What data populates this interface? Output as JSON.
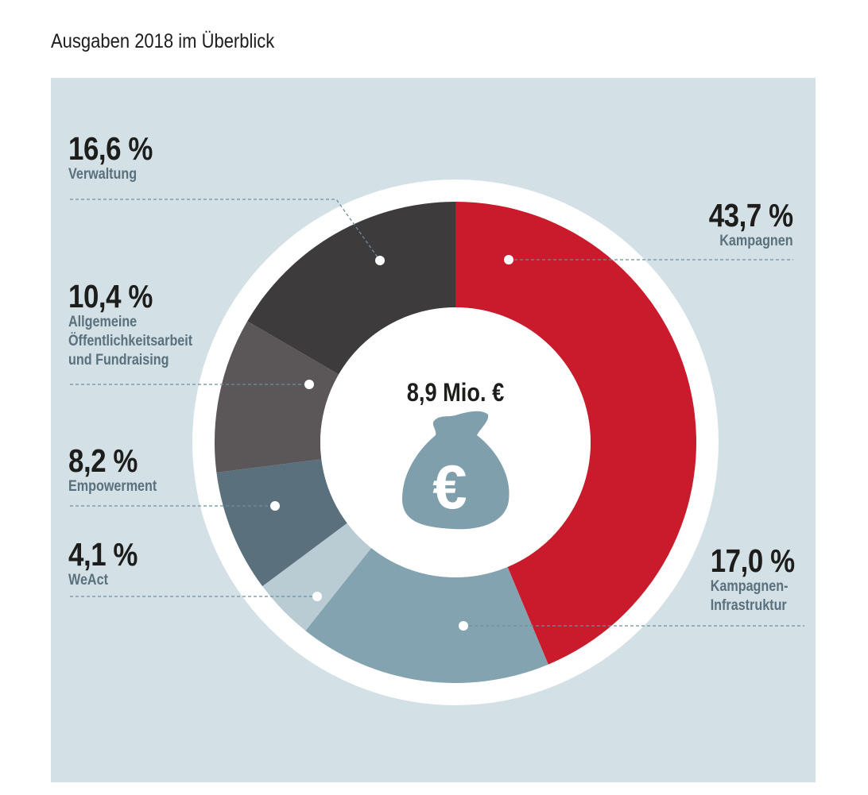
{
  "title": "Ausgaben 2018 im Überblick",
  "chart_data": {
    "type": "pie",
    "donut": true,
    "total_label": "8,9 Mio. €",
    "center_icon": "money-bag-euro-icon",
    "start": "top, clockwise",
    "slices": [
      {
        "name": "Kampagnen",
        "value": 43.7,
        "label": "43,7 %",
        "color": "#c91b2b"
      },
      {
        "name": "Kampagnen-Infrastruktur",
        "name_lines": [
          "Kampagnen-",
          "Infrastruktur"
        ],
        "value": 17.0,
        "label": "17,0 %",
        "color": "#84a3b1"
      },
      {
        "name": "WeAct",
        "value": 4.1,
        "label": "4,1 %",
        "color": "#b9ccd3"
      },
      {
        "name": "Empowerment",
        "value": 8.2,
        "label": "8,2 %",
        "color": "#5a707c"
      },
      {
        "name": "Allgemeine Öffentlichkeitsarbeit und Fundraising",
        "name_lines": [
          "Allgemeine",
          "Öffentlichkeitsarbeit",
          "und Fundraising"
        ],
        "value": 10.4,
        "label": "10,4 %",
        "color": "#5b5758"
      },
      {
        "name": "Verwaltung",
        "value": 16.6,
        "label": "16,6 %",
        "color": "#3d3b3c"
      }
    ]
  },
  "colors": {
    "background": "#d3e0e6",
    "ring": "#ffffff",
    "label_text": "#5a707c",
    "leader": "#6e8e9b",
    "icon": "#7f9fad"
  }
}
